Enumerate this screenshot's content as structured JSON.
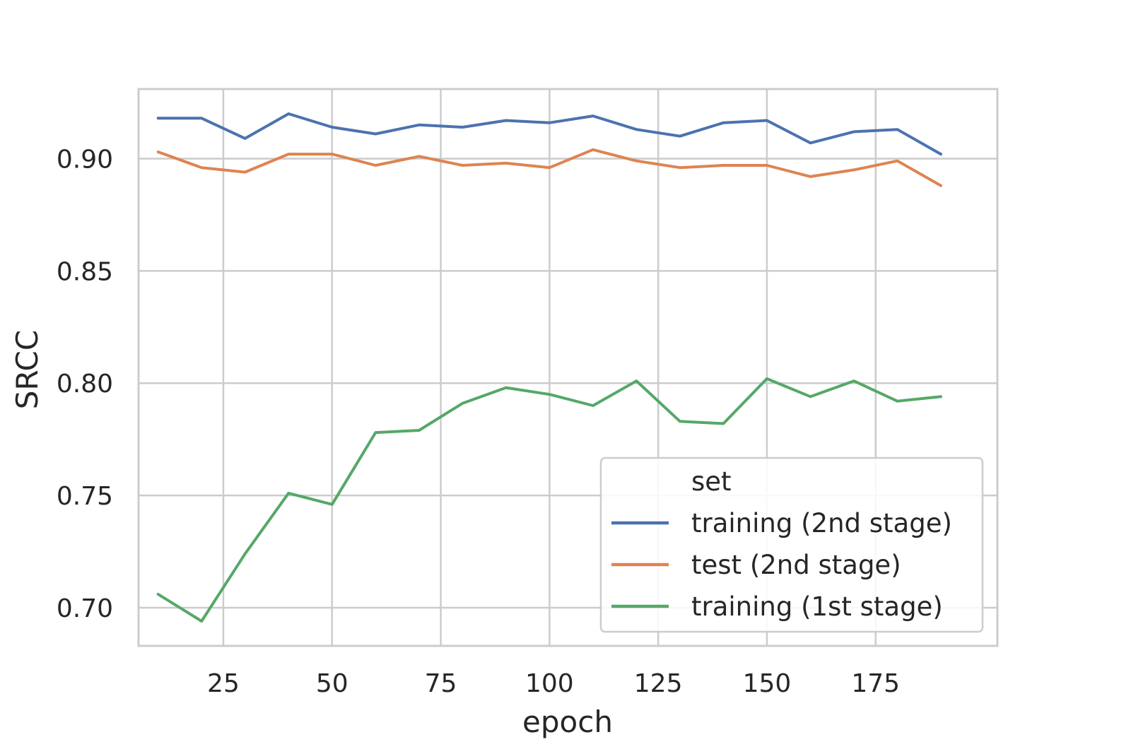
{
  "chart_data": {
    "type": "line",
    "xlabel": "epoch",
    "ylabel": "SRCC",
    "xlim": [
      5.5,
      203
    ],
    "ylim": [
      0.683,
      0.931
    ],
    "xticks": [
      25,
      50,
      75,
      100,
      125,
      150,
      175
    ],
    "yticks": [
      0.7,
      0.75,
      0.8,
      0.85,
      0.9
    ],
    "xtick_labels": [
      "25",
      "50",
      "75",
      "100",
      "125",
      "150",
      "175"
    ],
    "ytick_labels": [
      "0.70",
      "0.75",
      "0.80",
      "0.85",
      "0.90"
    ],
    "grid": true,
    "legend": {
      "title": "set",
      "position": "lower-right"
    },
    "x": [
      10,
      20,
      30,
      40,
      50,
      60,
      70,
      80,
      90,
      100,
      110,
      120,
      130,
      140,
      150,
      160,
      170,
      180,
      190
    ],
    "series": [
      {
        "name": "training (2nd stage)",
        "color": "#4c72b0",
        "values": [
          0.918,
          0.918,
          0.909,
          0.92,
          0.914,
          0.911,
          0.915,
          0.914,
          0.917,
          0.916,
          0.919,
          0.913,
          0.91,
          0.916,
          0.917,
          0.907,
          0.912,
          0.913,
          0.902
        ]
      },
      {
        "name": "test (2nd stage)",
        "color": "#dd8452",
        "values": [
          0.903,
          0.896,
          0.894,
          0.902,
          0.902,
          0.897,
          0.901,
          0.897,
          0.898,
          0.896,
          0.904,
          0.899,
          0.896,
          0.897,
          0.897,
          0.892,
          0.895,
          0.899,
          0.888
        ]
      },
      {
        "name": "training (1st stage)",
        "color": "#55a868",
        "values": [
          0.706,
          0.694,
          0.724,
          0.751,
          0.746,
          0.778,
          0.779,
          0.791,
          0.798,
          0.795,
          0.79,
          0.801,
          0.783,
          0.782,
          0.802,
          0.794,
          0.801,
          0.792,
          0.794
        ]
      }
    ]
  }
}
